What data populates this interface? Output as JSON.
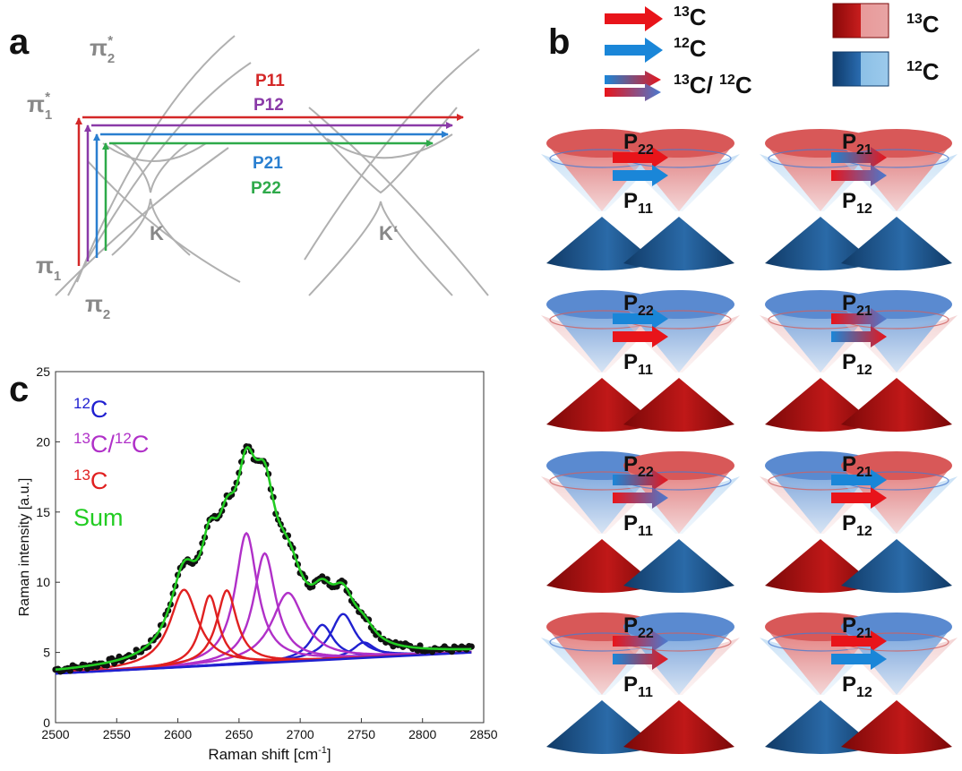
{
  "panel_a": {
    "label": "a",
    "band_labels": {
      "pi2_star": "π",
      "pi2_star_sub": "2",
      "pi2_star_sup": "*",
      "pi1_star": "π",
      "pi1_star_sub": "1",
      "pi1_star_sup": "*",
      "pi1": "π",
      "pi1_sub": "1",
      "pi2": "π",
      "pi2_sub": "2"
    },
    "valley_labels": [
      "K",
      "K‘"
    ],
    "process_labels": [
      {
        "text": "P11",
        "color": "#d42828"
      },
      {
        "text": "P12",
        "color": "#8a3aa8"
      },
      {
        "text": "P21",
        "color": "#2a7fd0"
      },
      {
        "text": "P22",
        "color": "#2eaa4a"
      }
    ]
  },
  "panel_b": {
    "label": "b",
    "legend_arrows": [
      {
        "label_sup": "13",
        "label_main": "C",
        "kind": "red"
      },
      {
        "label_sup": "12",
        "label_main": "C",
        "kind": "blue"
      },
      {
        "label_sup": "13",
        "label_main": "C/ ",
        "label_sup2": "12",
        "label_main2": "C",
        "kind": "grad"
      }
    ],
    "legend_swatches": [
      {
        "label_sup": "13",
        "label_main": "C",
        "dark": "#a01010",
        "light": "#e89a9a"
      },
      {
        "label_sup": "12",
        "label_main": "C",
        "dark": "#1a4e86",
        "light": "#8cc0e6"
      }
    ],
    "rows": [
      {
        "left": {
          "top_label": "P",
          "top_sub": "22",
          "bottom_label": "P",
          "bottom_sub": "11"
        },
        "right": {
          "top_label": "P",
          "top_sub": "21",
          "bottom_label": "P",
          "bottom_sub": "12"
        }
      },
      {
        "left": {
          "top_label": "P",
          "top_sub": "22",
          "bottom_label": "P",
          "bottom_sub": "11"
        },
        "right": {
          "top_label": "P",
          "top_sub": "21",
          "bottom_label": "P",
          "bottom_sub": "12"
        }
      },
      {
        "left": {
          "top_label": "P",
          "top_sub": "22",
          "bottom_label": "P",
          "bottom_sub": "11"
        },
        "right": {
          "top_label": "P",
          "top_sub": "21",
          "bottom_label": "P",
          "bottom_sub": "12"
        }
      },
      {
        "left": {
          "top_label": "P",
          "top_sub": "22",
          "bottom_label": "P",
          "bottom_sub": "11"
        },
        "right": {
          "top_label": "P",
          "top_sub": "21",
          "bottom_label": "P",
          "bottom_sub": "12"
        }
      }
    ]
  },
  "panel_c": {
    "label": "c",
    "legend": [
      {
        "sup": "12",
        "main": "C",
        "color": "#2020d0"
      },
      {
        "sup": "13",
        "main": "C/",
        "sup2": "12",
        "main2": "C",
        "color": "#b030c8"
      },
      {
        "sup": "13",
        "main": "C",
        "color": "#e02020"
      },
      {
        "sup": "",
        "main": "Sum",
        "color": "#22cc22"
      }
    ],
    "xlabel_main": "Raman shift [cm",
    "xlabel_sup": "-1",
    "xlabel_end": "]",
    "ylabel": "Raman intensity [a.u.]"
  },
  "chart_data": {
    "type": "line",
    "xlim": [
      2500,
      2850
    ],
    "ylim": [
      0,
      25
    ],
    "x_ticks": [
      2500,
      2550,
      2600,
      2650,
      2700,
      2750,
      2800,
      2850
    ],
    "y_ticks": [
      0,
      5,
      10,
      15,
      20,
      25
    ],
    "baseline": {
      "x0": 2500,
      "y0": 3.5,
      "x1": 2840,
      "y1": 5.0
    },
    "series": [
      {
        "peaks": [
          {
            "center": 2718,
            "height": 2.5,
            "width": 11
          },
          {
            "center": 2735,
            "height": 3.2,
            "width": 12
          },
          {
            "center": 2752,
            "height": 1.1,
            "width": 11
          }
        ],
        "color": "#2020d0"
      },
      {
        "peaks": [
          {
            "center": 2656,
            "height": 9.3,
            "width": 11
          },
          {
            "center": 2671,
            "height": 7.8,
            "width": 11
          },
          {
            "center": 2690,
            "height": 4.9,
            "width": 16
          }
        ],
        "color": "#b030c8"
      },
      {
        "peaks": [
          {
            "center": 2605,
            "height": 5.5,
            "width": 14
          },
          {
            "center": 2626,
            "height": 5.0,
            "width": 9
          },
          {
            "center": 2640,
            "height": 5.3,
            "width": 10
          }
        ],
        "color": "#e02020"
      },
      {
        "type": "sum",
        "color": "#22cc22"
      },
      {
        "type": "measured",
        "color": "#111111"
      }
    ]
  },
  "colors": {
    "red": "#e8141a",
    "blue": "#1a86d8",
    "purple": "#8a3aa8",
    "green": "#2eaa4a",
    "grey": "#a8a8a8"
  }
}
